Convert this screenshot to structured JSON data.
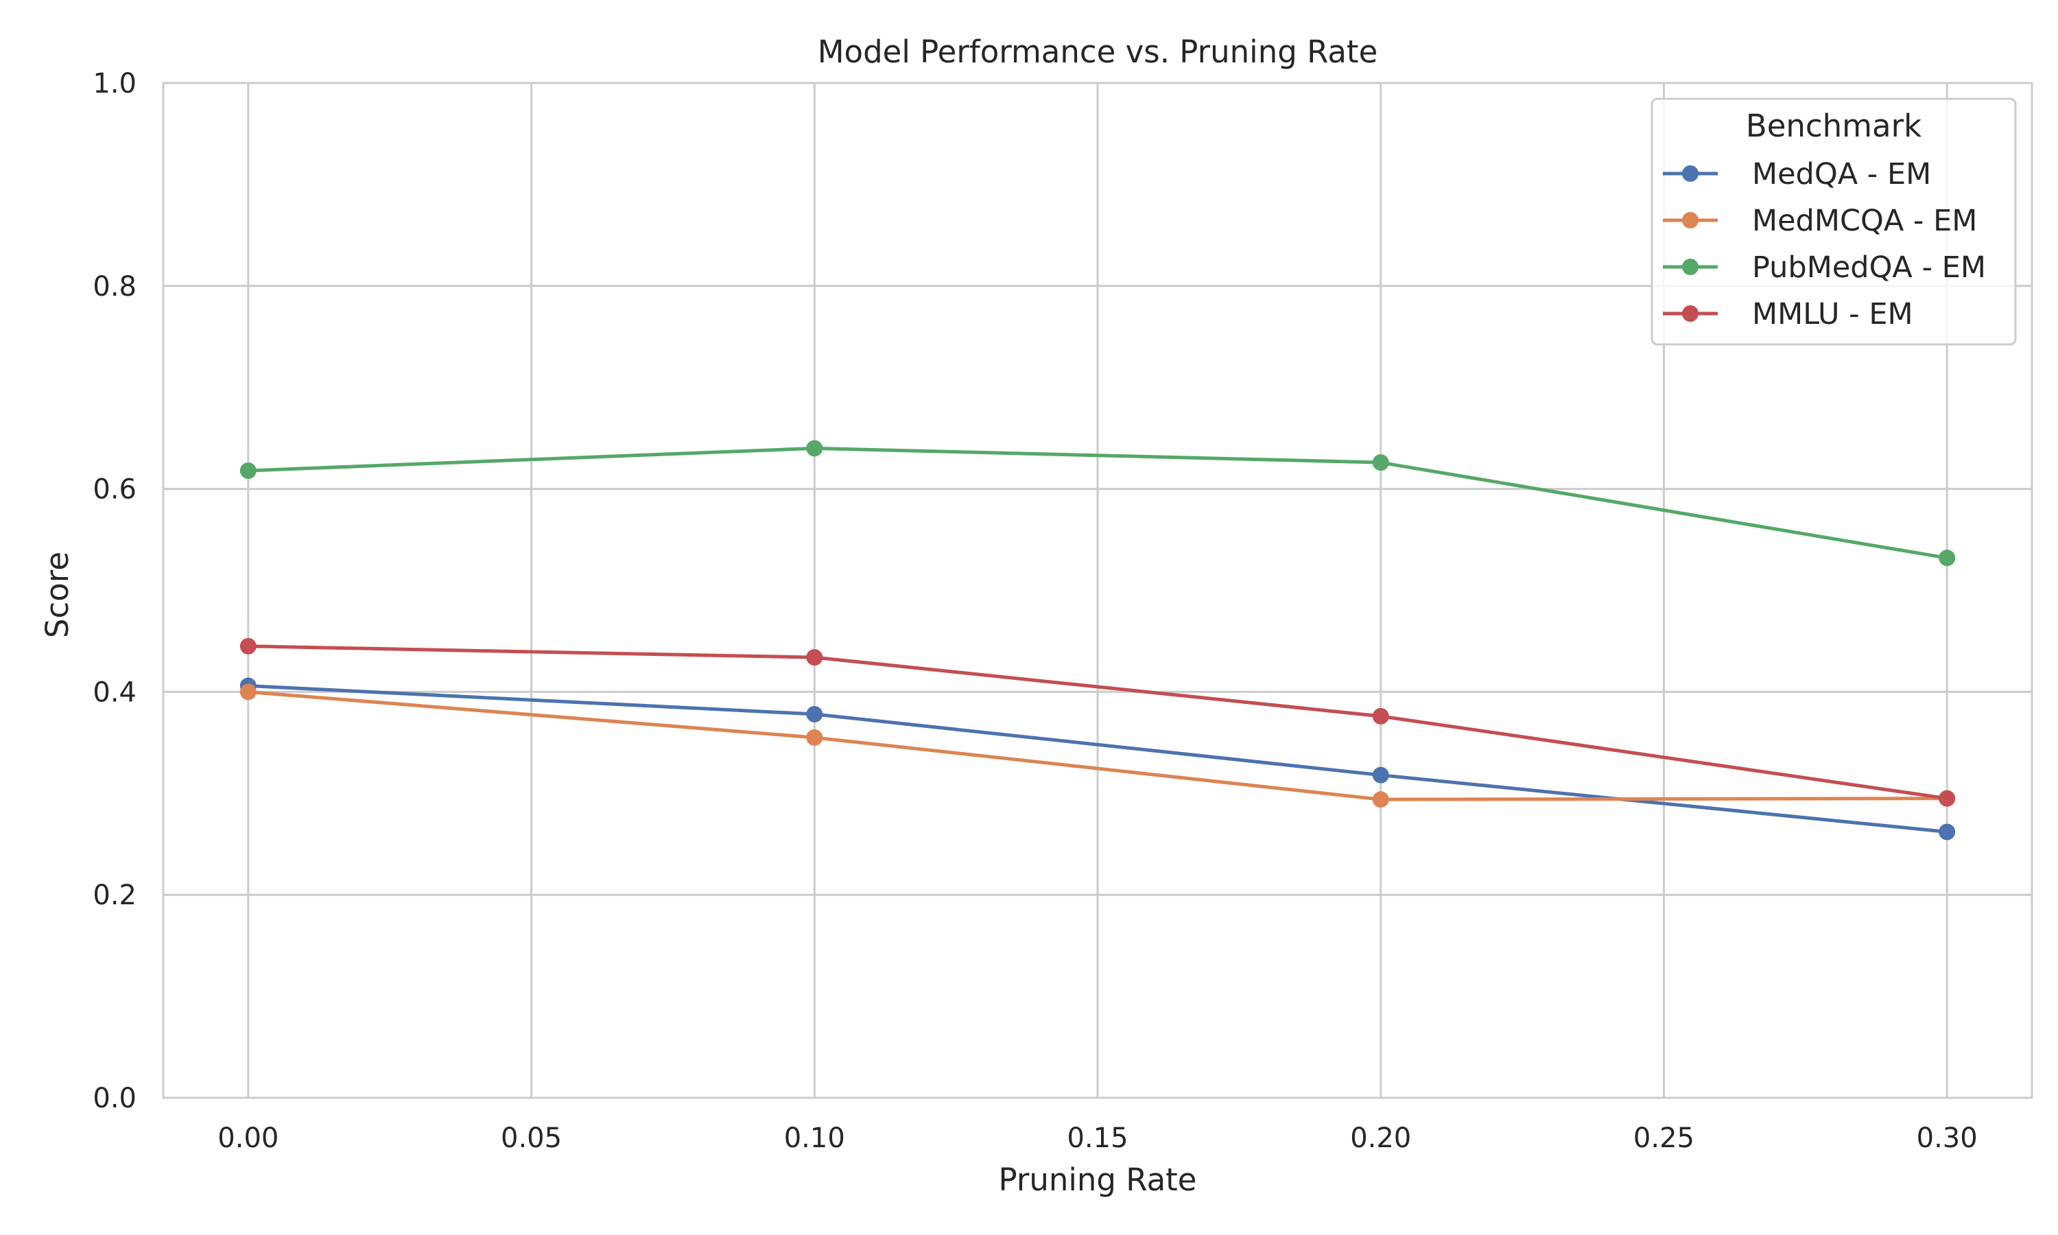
{
  "chart_data": {
    "type": "line",
    "title": "Model Performance vs. Pruning Rate",
    "xlabel": "Pruning Rate",
    "ylabel": "Score",
    "xlim": [
      -0.015,
      0.315
    ],
    "ylim": [
      0.0,
      1.0
    ],
    "xticks": [
      0.0,
      0.05,
      0.1,
      0.15,
      0.2,
      0.25,
      0.3
    ],
    "xtick_labels": [
      "0.00",
      "0.05",
      "0.10",
      "0.15",
      "0.20",
      "0.25",
      "0.30"
    ],
    "yticks": [
      0.0,
      0.2,
      0.4,
      0.6,
      0.8,
      1.0
    ],
    "ytick_labels": [
      "0.0",
      "0.2",
      "0.4",
      "0.6",
      "0.8",
      "1.0"
    ],
    "grid": true,
    "legend": {
      "title": "Benchmark",
      "position": "top-right"
    },
    "x": [
      0.0,
      0.1,
      0.2,
      0.3
    ],
    "series": [
      {
        "name": "MedQA - EM",
        "color": "#4c72b0",
        "values": [
          0.406,
          0.378,
          0.318,
          0.262
        ]
      },
      {
        "name": "MedMCQA - EM",
        "color": "#dd8452",
        "values": [
          0.4,
          0.355,
          0.294,
          0.295
        ]
      },
      {
        "name": "PubMedQA - EM",
        "color": "#55a868",
        "values": [
          0.618,
          0.64,
          0.626,
          0.532
        ]
      },
      {
        "name": "MMLU - EM",
        "color": "#c44e52",
        "values": [
          0.445,
          0.434,
          0.376,
          0.295
        ]
      }
    ]
  }
}
